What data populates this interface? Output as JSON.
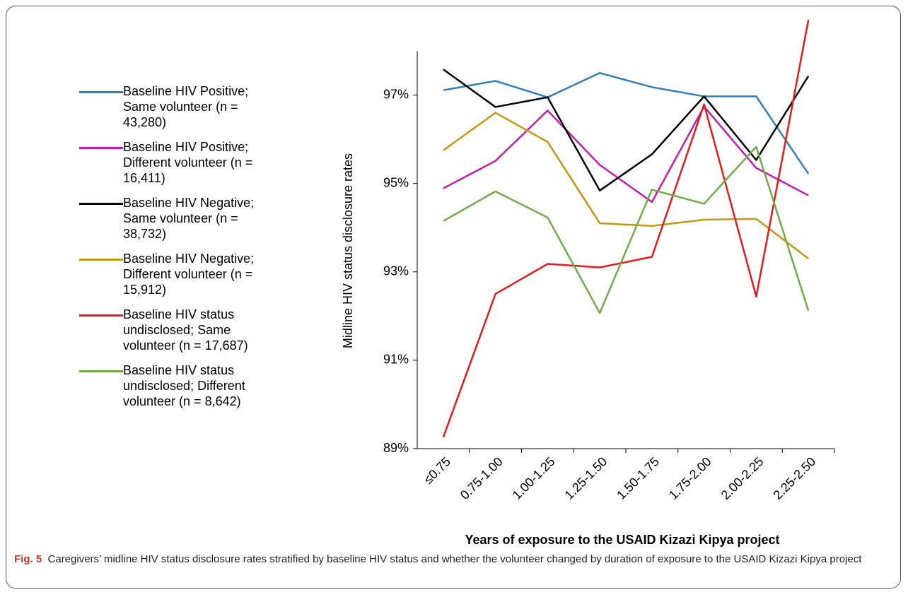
{
  "chart_data": {
    "type": "line",
    "y_label": "Midline HIV status disclosure rates",
    "x_label": "Years of exposure to the USAID Kizazi Kipya project",
    "caption_label": "Fig. 5",
    "caption": "Caregivers’ midline HIV status disclosure rates stratified by baseline HIV status and whether the volunteer changed by duration of exposure to the USAID Kizazi Kipya project",
    "categories": [
      "≤0.75",
      "0.75-1.00",
      "1.00-1.25",
      "1.25-1.50",
      "1.50-1.75",
      "1.75-2.00",
      "2.00-2.25",
      "2.25-2.50"
    ],
    "ylim": [
      89,
      98
    ],
    "yticks": [
      {
        "value": 89,
        "label": "89%"
      },
      {
        "value": 91,
        "label": "91%"
      },
      {
        "value": 93,
        "label": "93%"
      },
      {
        "value": 95,
        "label": "95%"
      },
      {
        "value": 97,
        "label": "97%"
      }
    ],
    "grid": false,
    "legend": "left",
    "series": [
      {
        "name": "Baseline HIV Positive; Same volunteer (n = 43,280)",
        "color": "#2e7fc2",
        "values": [
          97.11,
          97.32,
          96.95,
          97.5,
          97.18,
          96.97,
          96.97,
          95.22
        ]
      },
      {
        "name": "Baseline HIV Positive; Different volunteer (n = 16,411)",
        "color": "#c71bb0",
        "values": [
          94.89,
          95.51,
          96.65,
          95.42,
          94.58,
          96.74,
          95.35,
          94.73
        ]
      },
      {
        "name": "Baseline HIV Negative; Same volunteer (n = 38,732)",
        "color": "#000000",
        "values": [
          97.58,
          96.73,
          96.95,
          94.84,
          95.66,
          96.97,
          95.53,
          97.43
        ]
      },
      {
        "name": "Baseline HIV Negative; Different volunteer (n = 15,912)",
        "color": "#c8960c",
        "values": [
          95.75,
          96.6,
          95.94,
          94.1,
          94.04,
          94.18,
          94.2,
          93.3
        ]
      },
      {
        "name": "Baseline HIV status undisclosed; Same volunteer (n = 17,687)",
        "color": "#e8191c",
        "values": [
          89.26,
          92.5,
          93.18,
          93.1,
          93.34,
          96.79,
          92.44,
          98.7
        ]
      },
      {
        "name": "Baseline HIV status undisclosed; Different volunteer (n = 8,642)",
        "color": "#6fac46",
        "values": [
          94.15,
          94.82,
          94.23,
          92.07,
          94.86,
          94.54,
          95.83,
          92.12
        ]
      }
    ]
  }
}
